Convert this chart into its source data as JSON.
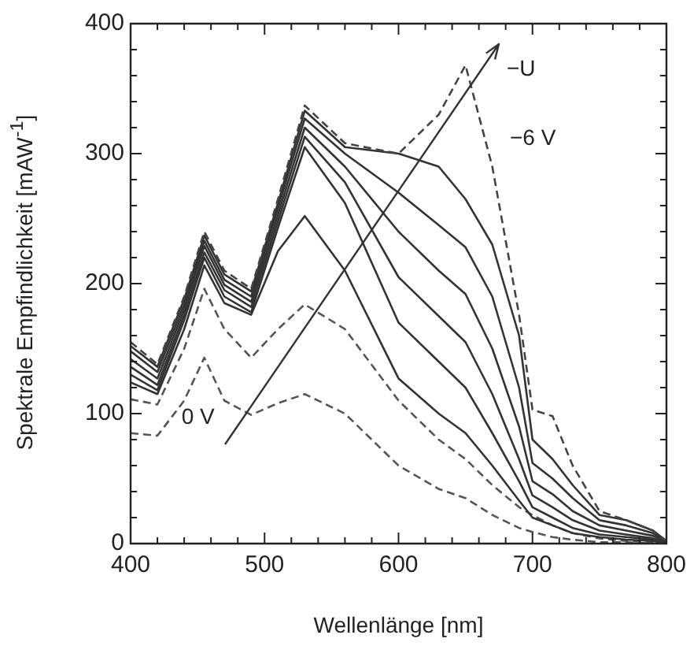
{
  "chart_data": {
    "type": "line",
    "xlabel": "Wellenlänge [nm]",
    "ylabel": "Spektrale Empfindlichkeit [mAW$^{-1}$]",
    "x": [
      400,
      420,
      440,
      455,
      470,
      490,
      510,
      530,
      560,
      600,
      630,
      650,
      670,
      690,
      700,
      715,
      730,
      750,
      770,
      790,
      800
    ],
    "series": [
      {
        "color": "#444444",
        "line_style": "dashed",
        "values": [
          155,
          138,
          190,
          240,
          210,
          196,
          265,
          337,
          308,
          300,
          330,
          368,
          290,
          176,
          103,
          98,
          60,
          25,
          18,
          10,
          2
        ]
      },
      {
        "color": "#333333",
        "values": [
          152,
          136,
          188,
          237,
          207,
          194,
          262,
          333,
          305,
          300,
          290,
          265,
          230,
          160,
          80,
          65,
          45,
          22,
          18,
          10,
          2
        ]
      },
      {
        "color": "#333333",
        "values": [
          148,
          132,
          184,
          233,
          203,
          190,
          258,
          327,
          300,
          270,
          245,
          228,
          190,
          120,
          62,
          50,
          35,
          18,
          14,
          8,
          1
        ]
      },
      {
        "color": "#333333",
        "values": [
          142,
          127,
          180,
          229,
          199,
          186,
          253,
          320,
          290,
          240,
          210,
          192,
          150,
          90,
          48,
          38,
          25,
          14,
          10,
          6,
          1
        ]
      },
      {
        "color": "#333333",
        "values": [
          136,
          122,
          176,
          224,
          195,
          182,
          248,
          313,
          278,
          205,
          175,
          155,
          115,
          65,
          37,
          28,
          18,
          10,
          7,
          4,
          1
        ]
      },
      {
        "color": "#333333",
        "values": [
          130,
          118,
          172,
          220,
          190,
          178,
          243,
          305,
          262,
          170,
          140,
          120,
          85,
          48,
          28,
          20,
          12,
          7,
          5,
          3,
          0
        ]
      },
      {
        "color": "#333333",
        "values": [
          124,
          115,
          165,
          214,
          185,
          176,
          225,
          252,
          210,
          127,
          100,
          85,
          60,
          33,
          20,
          14,
          8,
          5,
          3,
          2,
          0
        ]
      },
      {
        "color": "#555555",
        "line_style": "dashed",
        "values": [
          111,
          107,
          150,
          196,
          165,
          143,
          165,
          184,
          165,
          110,
          80,
          65,
          45,
          28,
          22,
          14,
          8,
          4,
          2,
          1,
          0
        ]
      },
      {
        "color": "#555555",
        "line_style": "dashed",
        "values": [
          85,
          83,
          110,
          143,
          110,
          99,
          108,
          115,
          100,
          60,
          42,
          35,
          22,
          12,
          9,
          5,
          3,
          1,
          1,
          0,
          0
        ]
      }
    ],
    "xlim": [
      400,
      800
    ],
    "xticks": [
      400,
      {
        "value": 420,
        "label": null
      },
      {
        "value": 440,
        "label": null
      },
      {
        "value": 460,
        "label": null
      },
      {
        "value": 480,
        "label": null
      },
      500,
      {
        "value": 520,
        "label": null
      },
      {
        "value": 540,
        "label": null
      },
      {
        "value": 560,
        "label": null
      },
      {
        "value": 580,
        "label": null
      },
      600,
      {
        "value": 620,
        "label": null
      },
      {
        "value": 640,
        "label": null
      },
      {
        "value": 660,
        "label": null
      },
      {
        "value": 680,
        "label": null
      },
      700,
      {
        "value": 720,
        "label": null
      },
      {
        "value": 740,
        "label": null
      },
      {
        "value": 760,
        "label": null
      },
      {
        "value": 780,
        "label": null
      },
      800
    ],
    "ylim": [
      0,
      400
    ],
    "yticks": [
      0,
      {
        "value": 20,
        "label": null
      },
      {
        "value": 40,
        "label": null
      },
      {
        "value": 60,
        "label": null
      },
      {
        "value": 80,
        "label": null
      },
      100,
      {
        "value": 120,
        "label": null
      },
      {
        "value": 140,
        "label": null
      },
      {
        "value": 160,
        "label": null
      },
      {
        "value": 180,
        "label": null
      },
      200,
      {
        "value": 220,
        "label": null
      },
      {
        "value": 240,
        "label": null
      },
      {
        "value": 260,
        "label": null
      },
      {
        "value": 280,
        "label": null
      },
      300,
      {
        "value": 320,
        "label": null
      },
      {
        "value": 340,
        "label": null
      },
      {
        "value": 360,
        "label": null
      },
      {
        "value": 380,
        "label": null
      },
      400
    ],
    "annotations": [
      "−U",
      "−6 V",
      {
        "text": "0 V",
        "x": 438,
        "y": 97
      }
    ],
    "grid": false,
    "legend": false,
    "marker": "none"
  }
}
